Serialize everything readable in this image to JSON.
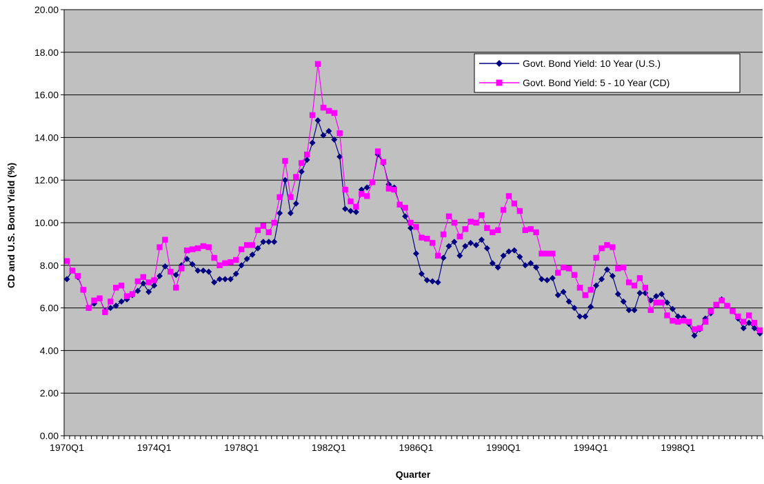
{
  "chart_data": {
    "type": "line",
    "title": "",
    "xlabel": "Quarter",
    "ylabel": "CD and U.S. Bond Yield (%)",
    "ylim": [
      0,
      20
    ],
    "y_ticks": [
      "0.00",
      "2.00",
      "4.00",
      "6.00",
      "8.00",
      "10.00",
      "12.00",
      "14.00",
      "16.00",
      "18.00",
      "20.00"
    ],
    "x_tick_labels": [
      "1970Q1",
      "1974Q1",
      "1978Q1",
      "1982Q1",
      "1986Q1",
      "1990Q1",
      "1994Q1",
      "1998Q1"
    ],
    "grid": "horizontal",
    "legend_position": "top-right",
    "plot_background": "#c0c0c0",
    "series": [
      {
        "name": "Govt. Bond Yield: 10 Year (U.S.)",
        "color": "#000080",
        "marker": "diamond",
        "values": [
          7.35,
          7.75,
          7.45,
          6.85,
          6.0,
          6.2,
          6.45,
          5.85,
          6.0,
          6.1,
          6.3,
          6.4,
          6.6,
          6.8,
          7.15,
          6.75,
          7.05,
          7.5,
          7.95,
          7.7,
          7.55,
          8.0,
          8.3,
          8.05,
          7.75,
          7.75,
          7.7,
          7.2,
          7.35,
          7.35,
          7.35,
          7.6,
          8.0,
          8.3,
          8.5,
          8.8,
          9.1,
          9.1,
          9.1,
          10.45,
          12.0,
          10.45,
          10.9,
          12.4,
          12.95,
          13.75,
          14.8,
          14.1,
          14.3,
          13.9,
          13.1,
          10.65,
          10.55,
          10.5,
          11.55,
          11.65,
          11.9,
          13.2,
          12.8,
          11.8,
          11.65,
          10.85,
          10.3,
          9.75,
          8.55,
          7.6,
          7.3,
          7.25,
          7.2,
          8.35,
          8.9,
          9.1,
          8.45,
          8.9,
          9.05,
          8.95,
          9.2,
          8.8,
          8.1,
          7.9,
          8.45,
          8.65,
          8.7,
          8.4,
          8.0,
          8.1,
          7.9,
          7.35,
          7.3,
          7.4,
          6.6,
          6.75,
          6.3,
          6.0,
          5.6,
          5.6,
          6.05,
          7.05,
          7.35,
          7.8,
          7.5,
          6.65,
          6.3,
          5.9,
          5.9,
          6.7,
          6.7,
          6.35,
          6.55,
          6.65,
          6.25,
          5.95,
          5.6,
          5.55,
          5.25,
          4.7,
          5.0,
          5.5,
          5.75,
          6.15,
          6.4,
          6.1,
          5.85,
          5.5,
          5.05,
          5.3,
          5.05,
          4.8
        ]
      },
      {
        "name": "Govt. Bond Yield: 5 - 10 Year (CD)",
        "color": "#ff00ff",
        "marker": "square",
        "values": [
          8.2,
          7.75,
          7.5,
          6.85,
          6.0,
          6.35,
          6.45,
          5.8,
          6.3,
          6.95,
          7.05,
          6.55,
          6.65,
          7.25,
          7.45,
          7.2,
          7.3,
          8.85,
          9.2,
          7.7,
          6.95,
          7.85,
          8.7,
          8.75,
          8.8,
          8.9,
          8.85,
          8.35,
          8.0,
          8.1,
          8.15,
          8.25,
          8.75,
          8.95,
          8.95,
          9.65,
          9.85,
          9.55,
          10.0,
          11.2,
          12.9,
          11.2,
          12.15,
          12.8,
          13.2,
          15.05,
          17.45,
          15.4,
          15.25,
          15.15,
          14.2,
          11.55,
          11.0,
          10.75,
          11.35,
          11.25,
          11.9,
          13.35,
          12.85,
          11.6,
          11.55,
          10.85,
          10.7,
          10.0,
          9.8,
          9.3,
          9.25,
          9.05,
          8.45,
          9.45,
          10.3,
          10.0,
          9.35,
          9.7,
          10.05,
          10.0,
          10.35,
          9.75,
          9.55,
          9.65,
          10.6,
          11.25,
          10.9,
          10.55,
          9.65,
          9.7,
          9.55,
          8.55,
          8.55,
          8.55,
          7.65,
          7.9,
          7.85,
          7.55,
          6.95,
          6.6,
          6.85,
          8.35,
          8.8,
          8.95,
          8.85,
          7.85,
          7.9,
          7.2,
          7.05,
          7.4,
          6.95,
          5.9,
          6.25,
          6.25,
          5.65,
          5.4,
          5.35,
          5.4,
          5.35,
          5.0,
          5.05,
          5.35,
          5.85,
          6.15,
          6.35,
          6.1,
          5.85,
          5.6,
          5.35,
          5.65,
          5.3,
          4.95
        ]
      }
    ]
  }
}
